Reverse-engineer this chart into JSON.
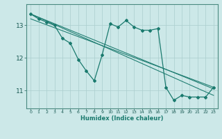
{
  "x": [
    0,
    1,
    2,
    3,
    4,
    5,
    6,
    7,
    8,
    9,
    10,
    11,
    12,
    13,
    14,
    15,
    16,
    17,
    18,
    19,
    20,
    21,
    22,
    23
  ],
  "y_main": [
    13.35,
    13.2,
    13.1,
    13.0,
    12.6,
    12.45,
    11.95,
    11.6,
    11.3,
    12.1,
    13.05,
    12.95,
    13.15,
    12.95,
    12.85,
    12.85,
    12.9,
    11.1,
    10.7,
    10.85,
    10.8,
    10.8,
    10.8,
    11.1
  ],
  "xlabel": "Humidex (Indice chaleur)",
  "xlim": [
    -0.5,
    23.5
  ],
  "ylim": [
    10.45,
    13.65
  ],
  "yticks": [
    11,
    12,
    13
  ],
  "xticks": [
    0,
    1,
    2,
    3,
    4,
    5,
    6,
    7,
    8,
    9,
    10,
    11,
    12,
    13,
    14,
    15,
    16,
    17,
    18,
    19,
    20,
    21,
    22,
    23
  ],
  "line_color": "#1a7a6e",
  "bg_color": "#cce8e8",
  "grid_color": "#aacece",
  "trend_lines": [
    [
      [
        0,
        23
      ],
      [
        13.35,
        11.05
      ]
    ],
    [
      [
        0,
        23
      ],
      [
        13.35,
        10.85
      ]
    ],
    [
      [
        0,
        23
      ],
      [
        13.2,
        11.1
      ]
    ]
  ]
}
